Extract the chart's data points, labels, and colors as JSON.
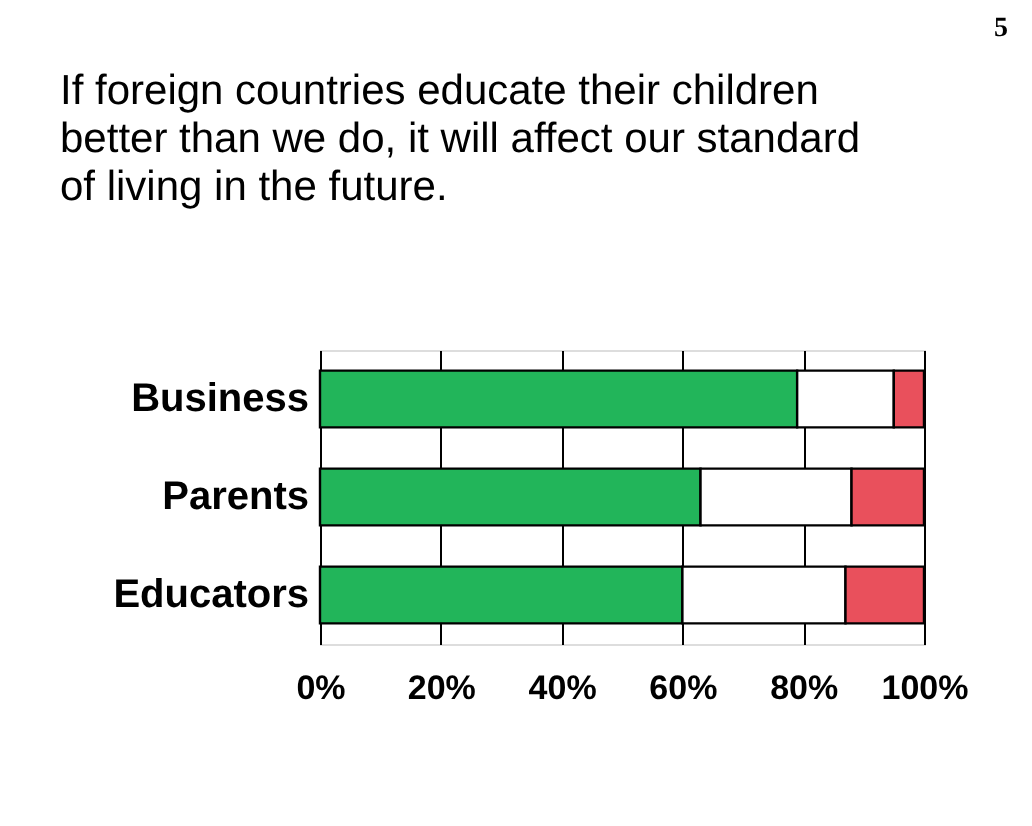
{
  "chart_data": {
    "type": "bar",
    "orientation": "horizontal",
    "stacked": true,
    "title": "If foreign countries educate their children better than we do, it will affect our standard of living in the future.",
    "categories": [
      "Business",
      "Parents",
      "Educators"
    ],
    "series": [
      {
        "color": "#22b55a",
        "values": [
          79,
          63,
          60
        ]
      },
      {
        "color": "#ffffff",
        "values": [
          16,
          25,
          27
        ]
      },
      {
        "color": "#e9505c",
        "values": [
          5,
          12,
          13
        ]
      }
    ],
    "xlim": [
      0,
      100
    ],
    "xticks": [
      {
        "value": 0,
        "label": "0%"
      },
      {
        "value": 20,
        "label": "20%"
      },
      {
        "value": 40,
        "label": "40%"
      },
      {
        "value": 60,
        "label": "60%"
      },
      {
        "value": 80,
        "label": "80%"
      },
      {
        "value": 100,
        "label": "100%"
      }
    ],
    "grid": true,
    "legend": false,
    "annotations": [
      "5"
    ]
  }
}
